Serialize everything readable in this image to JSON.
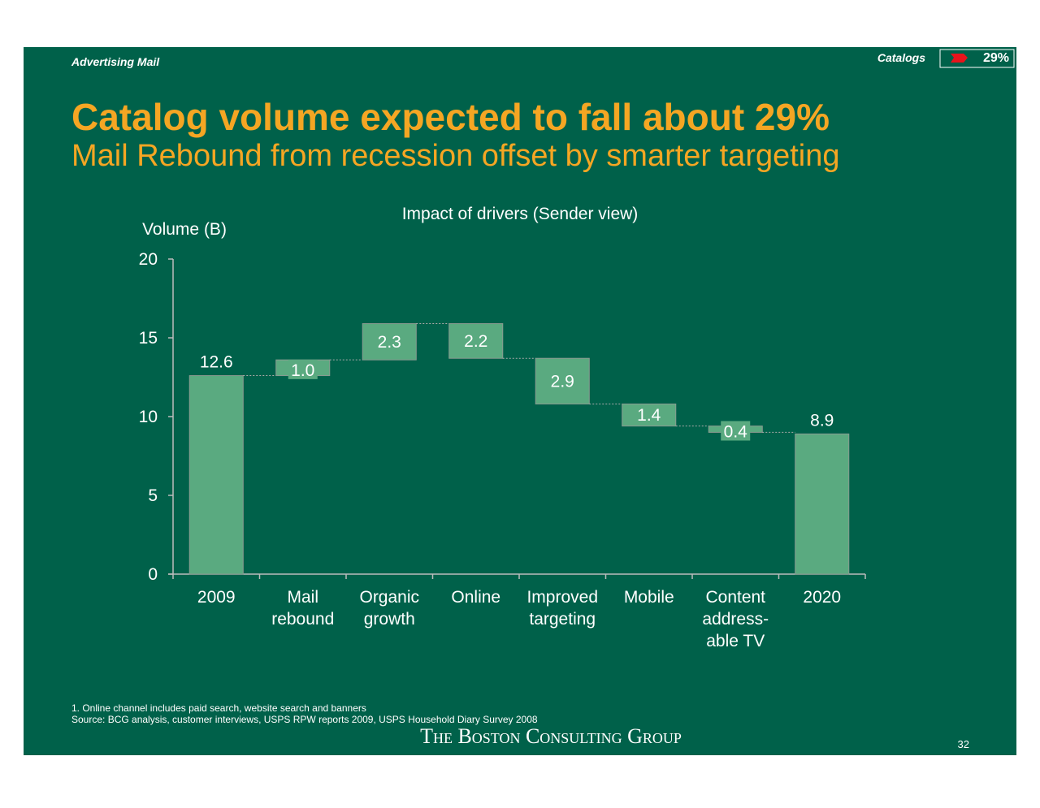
{
  "header": {
    "section": "Advertising  Mail",
    "tag": "Catalogs",
    "tag_value": "29%"
  },
  "title": "Catalog volume expected to fall about 29%",
  "subtitle": "Mail Rebound from recession offset by smarter targeting",
  "chart_data": {
    "type": "waterfall",
    "title": "Impact of drivers (Sender view)",
    "y_label": "Volume (B)",
    "categories": [
      "2009",
      "Mail\nrebound",
      "Organic\ngrowth",
      "Online",
      "Improved\ntargeting",
      "Mobile",
      "Content\naddress-\nable TV",
      "2020"
    ],
    "values": [
      12.6,
      1.0,
      2.3,
      -2.2,
      -2.9,
      -1.4,
      -0.4,
      8.9
    ],
    "value_labels": [
      "12.6",
      "1.0",
      "2.3",
      "2.2",
      "2.9",
      "1.4",
      "0.4",
      "8.9"
    ],
    "totals": [
      true,
      false,
      false,
      false,
      false,
      false,
      false,
      true
    ],
    "color": "#5aaa80",
    "ylim": [
      0,
      20
    ],
    "yticks": [
      0,
      5,
      10,
      15,
      20
    ]
  },
  "footnotes": [
    "1. Online channel includes paid search, website search and banners",
    "Source: BCG analysis, customer interviews, USPS RPW reports 2009, USPS Household Diary Survey 2008"
  ],
  "footer": {
    "logo": "The Boston Consulting Group",
    "page": "32"
  }
}
